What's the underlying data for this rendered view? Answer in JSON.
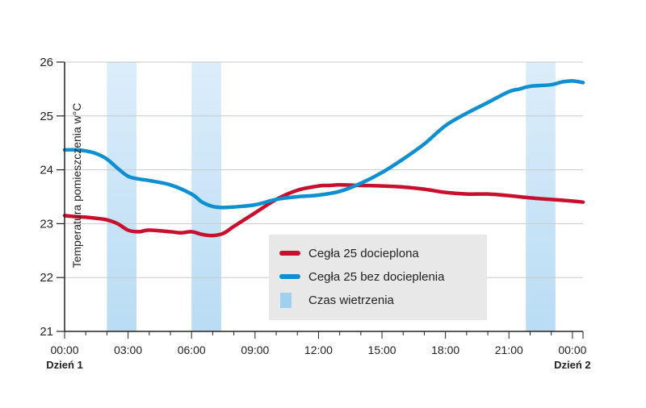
{
  "chart_data": {
    "type": "line",
    "ylabel": "Temperatura pomieszczenia w°C",
    "xlabel": "",
    "ylim": [
      21,
      26
    ],
    "yticks": [
      21,
      22,
      23,
      24,
      25,
      26
    ],
    "xlim": [
      0,
      24.5
    ],
    "xticks": [
      {
        "x": 0,
        "label": "00:00"
      },
      {
        "x": 3,
        "label": "03:00"
      },
      {
        "x": 6,
        "label": "06:00"
      },
      {
        "x": 9,
        "label": "09:00"
      },
      {
        "x": 12,
        "label": "12:00"
      },
      {
        "x": 15,
        "label": "15:00"
      },
      {
        "x": 18,
        "label": "18:00"
      },
      {
        "x": 21,
        "label": "21:00"
      },
      {
        "x": 24,
        "label": "00:00"
      }
    ],
    "day_labels": [
      {
        "x": 0,
        "label": "Dzień 1"
      },
      {
        "x": 24,
        "label": "Dzień 2"
      }
    ],
    "grid": true,
    "legend_position": "lower-right",
    "ventilation": {
      "name": "Czas wietrzenia",
      "color": "#b9dcf4",
      "intervals": [
        [
          2.0,
          3.4
        ],
        [
          6.0,
          7.4
        ],
        [
          21.8,
          23.2
        ]
      ]
    },
    "series": [
      {
        "name": "Cegła 25 docieplona",
        "color": "#c8102e",
        "x": [
          0,
          0.5,
          1,
          1.5,
          2,
          2.5,
          3,
          3.5,
          4,
          5,
          5.5,
          6,
          6.5,
          7,
          7.5,
          8,
          9,
          10,
          11,
          12,
          12.5,
          13,
          14,
          15,
          16,
          17,
          18,
          19,
          20,
          21,
          22,
          23,
          24,
          24.5
        ],
        "values": [
          23.15,
          23.13,
          23.12,
          23.1,
          23.07,
          23.0,
          22.88,
          22.85,
          22.88,
          22.85,
          22.83,
          22.85,
          22.8,
          22.78,
          22.82,
          22.95,
          23.2,
          23.45,
          23.62,
          23.7,
          23.71,
          23.72,
          23.71,
          23.7,
          23.68,
          23.64,
          23.58,
          23.55,
          23.55,
          23.52,
          23.48,
          23.45,
          23.42,
          23.4
        ]
      },
      {
        "name": "Cegła 25 bez docieplenia",
        "color": "#0e8fd0",
        "x": [
          0,
          0.5,
          1,
          1.5,
          2,
          2.5,
          3,
          3.5,
          4,
          5,
          6,
          6.5,
          7,
          7.5,
          8,
          9,
          10,
          11,
          12,
          13,
          14,
          15,
          16,
          17,
          18,
          19,
          20,
          21,
          21.5,
          22,
          23,
          23.5,
          24,
          24.5
        ],
        "values": [
          24.37,
          24.37,
          24.35,
          24.3,
          24.2,
          24.03,
          23.88,
          23.83,
          23.8,
          23.72,
          23.55,
          23.4,
          23.32,
          23.3,
          23.31,
          23.35,
          23.45,
          23.5,
          23.53,
          23.6,
          23.75,
          23.95,
          24.2,
          24.48,
          24.82,
          25.05,
          25.25,
          25.45,
          25.5,
          25.55,
          25.58,
          25.63,
          25.65,
          25.62
        ]
      }
    ]
  }
}
